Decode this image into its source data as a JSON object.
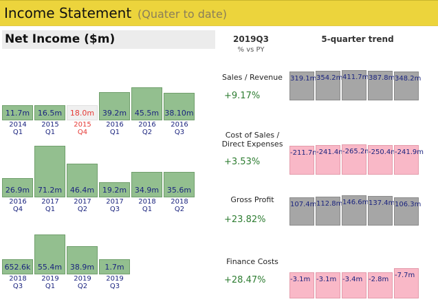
{
  "header": {
    "title": "Income Statement",
    "subtitle": "(Quater to date)"
  },
  "net_income": {
    "label": "Net Income ($m)"
  },
  "columns": {
    "period": "2019Q3",
    "period_sub": "% vs PY",
    "trend": "5-quarter trend"
  },
  "chart_data": {
    "type": "bar",
    "categories": [
      "2014 Q1",
      "2015 Q1",
      "2015 Q4",
      "2016 Q1",
      "2016 Q2",
      "2016 Q3",
      "2016 Q4",
      "2017 Q1",
      "2017 Q2",
      "2017 Q3",
      "2018 Q1",
      "2018 Q2",
      "2018 Q3",
      "2019 Q1",
      "2019 Q2",
      "2019 Q3"
    ],
    "values": [
      11.7,
      16.5,
      18.0,
      39.2,
      45.5,
      38.1,
      26.9,
      71.2,
      46.4,
      19.2,
      34.9,
      35.6,
      0.6526,
      55.4,
      38.9,
      1.7
    ],
    "ylim": [
      0,
      75
    ],
    "rows": [
      [
        {
          "year": "2014",
          "q": "Q1",
          "label": "11.7m",
          "value": 11.7,
          "hi": false
        },
        {
          "year": "2015",
          "q": "Q1",
          "label": "16.5m",
          "value": 16.5,
          "hi": false
        },
        {
          "year": "2015",
          "q": "Q4",
          "label": "18.0m",
          "value": 18.0,
          "hi": true
        },
        {
          "year": "2016",
          "q": "Q1",
          "label": "39.2m",
          "value": 39.2,
          "hi": false
        },
        {
          "year": "2016",
          "q": "Q2",
          "label": "45.5m",
          "value": 45.5,
          "hi": false
        },
        {
          "year": "2016",
          "q": "Q3",
          "label": "38.10m",
          "value": 38.1,
          "hi": false
        }
      ],
      [
        {
          "year": "2016",
          "q": "Q4",
          "label": "26.9m",
          "value": 26.9,
          "hi": false
        },
        {
          "year": "2017",
          "q": "Q1",
          "label": "71.2m",
          "value": 71.2,
          "hi": false
        },
        {
          "year": "2017",
          "q": "Q2",
          "label": "46.4m",
          "value": 46.4,
          "hi": false
        },
        {
          "year": "2017",
          "q": "Q3",
          "label": "19.2m",
          "value": 19.2,
          "hi": false
        },
        {
          "year": "2018",
          "q": "Q1",
          "label": "34.9m",
          "value": 34.9,
          "hi": false
        },
        {
          "year": "2018",
          "q": "Q2",
          "label": "35.6m",
          "value": 35.6,
          "hi": false
        }
      ],
      [
        {
          "year": "2018",
          "q": "Q3",
          "label": "652.6k",
          "value": 0.6526,
          "hi": false
        },
        {
          "year": "2019",
          "q": "Q1",
          "label": "55.4m",
          "value": 55.4,
          "hi": false
        },
        {
          "year": "2019",
          "q": "Q2",
          "label": "38.9m",
          "value": 38.9,
          "hi": false
        },
        {
          "year": "2019",
          "q": "Q3",
          "label": "1.7m",
          "value": 1.7,
          "hi": false
        }
      ]
    ]
  },
  "metrics": [
    {
      "label": "Sales / Revenue",
      "change": "+9.17%",
      "sign": "pos",
      "trend": [
        "319.1m",
        "354.2m",
        "411.7m",
        "387.8m",
        "348.2m"
      ],
      "trend_values": [
        319.1,
        354.2,
        411.7,
        387.8,
        348.2
      ]
    },
    {
      "label": "Cost of Sales / Direct Expenses",
      "change": "+3.53%",
      "sign": "neg",
      "trend": [
        "-211.7m",
        "-241.4m",
        "-265.2m",
        "-250.4m",
        "-241.9m"
      ],
      "trend_values": [
        -211.7,
        -241.4,
        -265.2,
        -250.4,
        -241.9
      ]
    },
    {
      "label": "Gross Profit",
      "change": "+23.82%",
      "sign": "pos",
      "trend": [
        "107.4m",
        "112.8m",
        "146.6m",
        "137.4m",
        "106.3m"
      ],
      "trend_values": [
        107.4,
        112.8,
        146.6,
        137.4,
        106.3
      ]
    },
    {
      "label": "Finance Costs",
      "change": "+28.47%",
      "sign": "neg",
      "trend": [
        "-3.1m",
        "-3.1m",
        "-3.4m",
        "-2.8m",
        "-7.7m"
      ],
      "trend_values": [
        -3.1,
        -3.1,
        -3.4,
        -2.8,
        -7.7
      ]
    }
  ]
}
